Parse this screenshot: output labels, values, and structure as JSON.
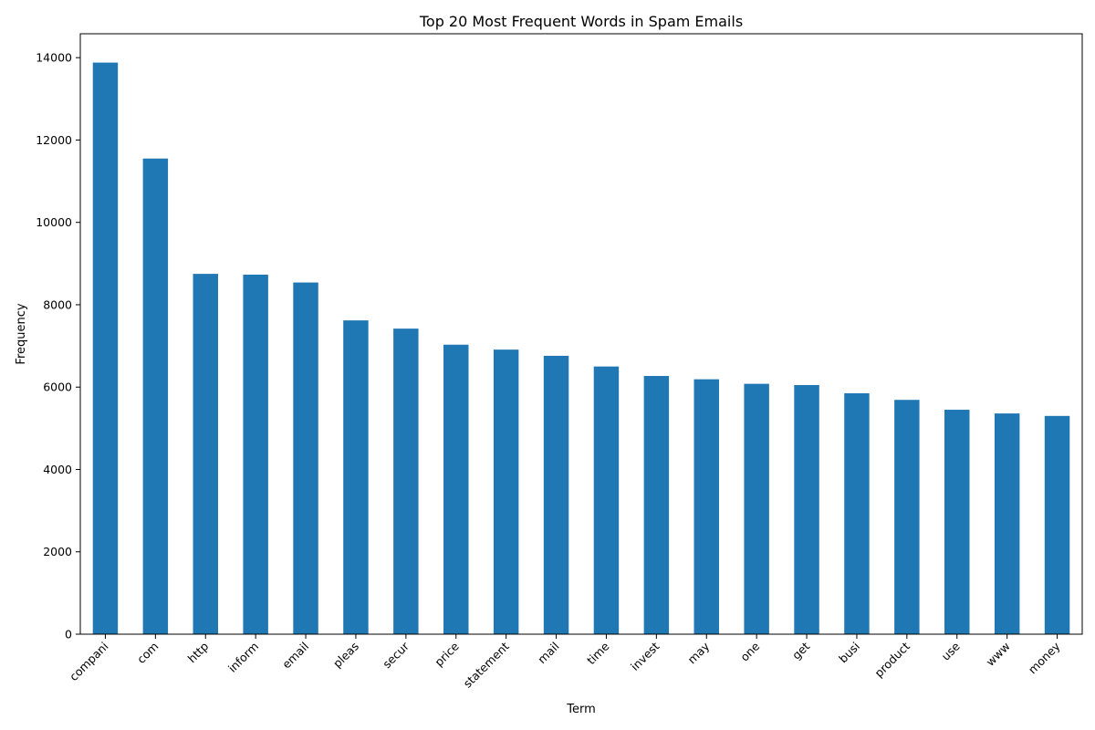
{
  "chart_data": {
    "type": "bar",
    "title": "Top 20 Most Frequent Words in Spam Emails",
    "xlabel": "Term",
    "ylabel": "Frequency",
    "ylim": [
      0,
      14580
    ],
    "yticks": [
      0,
      2000,
      4000,
      6000,
      8000,
      10000,
      12000,
      14000
    ],
    "grid": false,
    "bar_color": "#1f77b4",
    "categories": [
      "compani",
      "com",
      "http",
      "inform",
      "email",
      "pleas",
      "secur",
      "price",
      "statement",
      "mail",
      "time",
      "invest",
      "may",
      "one",
      "get",
      "busi",
      "product",
      "use",
      "www",
      "money"
    ],
    "values": [
      13880,
      11550,
      8750,
      8730,
      8540,
      7620,
      7420,
      7030,
      6910,
      6760,
      6500,
      6270,
      6190,
      6080,
      6050,
      5850,
      5690,
      5450,
      5360,
      5300
    ]
  }
}
